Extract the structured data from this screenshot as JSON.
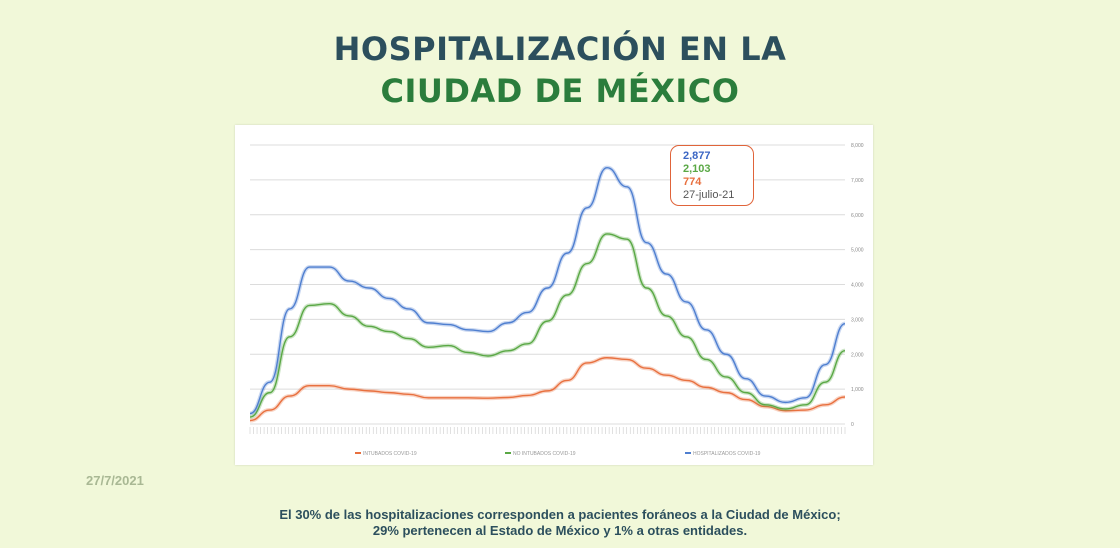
{
  "header": {
    "title_line1": "HOSPITALIZACIÓN EN LA",
    "title_line2": "CIUDAD DE MÉXICO"
  },
  "callout": {
    "hospitalizados": "2,877",
    "no_intubados": "2,103",
    "intubados": "774",
    "date": "27-julio-21"
  },
  "slide_date": "27/7/2021",
  "footer": {
    "line1": "El 30% de las hospitalizaciones corresponden a pacientes foráneos a la Ciudad de México;",
    "line2": "29% pertenecen al Estado de México y 1% a otras entidades."
  },
  "chart_data": {
    "type": "line",
    "ylim": [
      0,
      8000
    ],
    "yticks": [
      "0",
      "1,000",
      "2,000",
      "3,000",
      "4,000",
      "5,000",
      "6,000",
      "7,000",
      "8,000"
    ],
    "grid": true,
    "legend_position": "bottom",
    "series": [
      {
        "name": "INTUBADOS COVID-19",
        "color": "#e8703f",
        "values": [
          100,
          400,
          800,
          1100,
          1100,
          1000,
          950,
          900,
          850,
          750,
          750,
          750,
          740,
          760,
          820,
          950,
          1250,
          1750,
          1900,
          1850,
          1600,
          1400,
          1250,
          1050,
          900,
          700,
          500,
          380,
          400,
          550,
          774
        ]
      },
      {
        "name": "NO INTUBADOS COVID-19",
        "color": "#5aa845",
        "values": [
          200,
          900,
          2500,
          3400,
          3450,
          3100,
          2800,
          2650,
          2450,
          2200,
          2250,
          2050,
          1950,
          2100,
          2300,
          2950,
          3700,
          4600,
          5450,
          5300,
          3900,
          3100,
          2500,
          1850,
          1350,
          900,
          550,
          430,
          550,
          1200,
          2103
        ]
      },
      {
        "name": "HOSPITALIZADOS COVID-19",
        "color": "#4f7fd0",
        "values": [
          300,
          1200,
          3300,
          4500,
          4500,
          4100,
          3900,
          3600,
          3300,
          2900,
          2850,
          2700,
          2650,
          2900,
          3200,
          3900,
          4900,
          6200,
          7350,
          6800,
          5200,
          4300,
          3500,
          2700,
          2000,
          1300,
          800,
          620,
          750,
          1700,
          2877
        ]
      }
    ]
  }
}
